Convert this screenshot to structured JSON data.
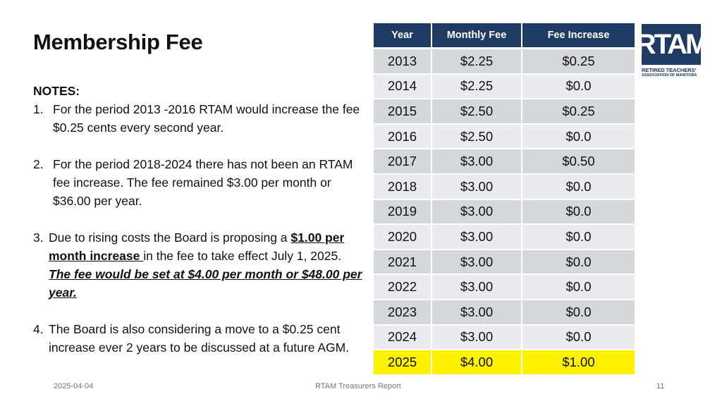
{
  "slide": {
    "title": "Membership Fee",
    "notes_heading": "NOTES:",
    "notes": [
      {
        "num": "1.",
        "text": "For the period 2013 -2016 RTAM would increase the fee $0.25 cents every second year."
      },
      {
        "num": "2.",
        "text": "For the period 2018-2024 there has not been an RTAM fee increase. The fee remained $3.00 per month or $36.00 per year."
      },
      {
        "num": "3.",
        "text_parts": [
          "Due to rising costs the Board is proposing a ",
          "$1.00  per month increase ",
          "in  the fee to take effect July 1, 2025. ",
          "The fee would be set at $4.00 per month or $48.00 per year."
        ]
      },
      {
        "num": "4.",
        "text": "The Board is also considering a move to a $0.25 cent increase ever 2 years to be discussed at a future AGM."
      }
    ]
  },
  "table": {
    "headers": [
      "Year",
      "Monthly Fee",
      "Fee Increase"
    ],
    "rows": [
      [
        "2013",
        "$2.25",
        "$0.25"
      ],
      [
        "2014",
        "$2.25",
        "$0.0"
      ],
      [
        "2015",
        "$2.50",
        "$0.25"
      ],
      [
        "2016",
        "$2.50",
        "$0.0"
      ],
      [
        "2017",
        "$3.00",
        "$0.50"
      ],
      [
        "2018",
        "$3.00",
        "$0.0"
      ],
      [
        "2019",
        "$3.00",
        "$0.0"
      ],
      [
        "2020",
        "$3.00",
        "$0.0"
      ],
      [
        "2021",
        "$3.00",
        "$0.0"
      ],
      [
        "2022",
        "$3.00",
        "$0.0"
      ],
      [
        "2023",
        "$3.00",
        "$0.0"
      ],
      [
        "2024",
        "$3.00",
        "$0.0"
      ],
      [
        "2025",
        "$4.00",
        "$1.00"
      ]
    ],
    "highlight_row": "2025",
    "colors": {
      "header": "#1f3a63",
      "highlight": "#fff200",
      "band_dark": "#d4d7dc",
      "band_light": "#e9ebee"
    }
  },
  "logo": {
    "letters": "RTAM",
    "line1": "RETIRED TEACHERS'",
    "line2": "ASSOCIATION OF MANITOBA"
  },
  "footer": {
    "date": "2025-04-04",
    "center": "RTAM Treasurers Report",
    "page": "11"
  }
}
